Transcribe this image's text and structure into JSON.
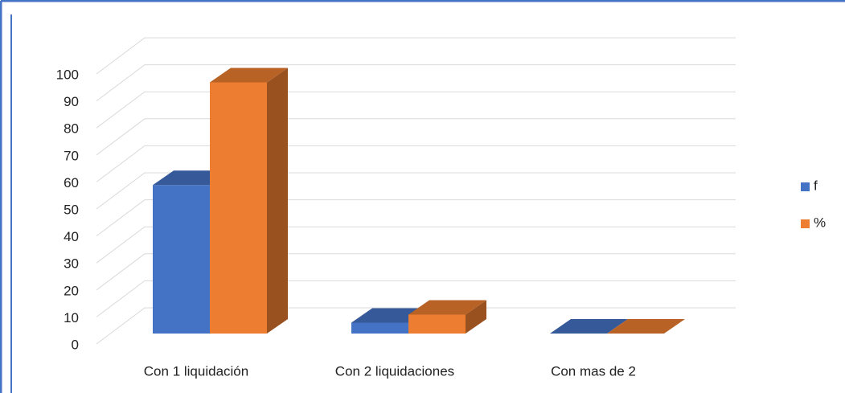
{
  "chart_data": {
    "type": "bar3d",
    "categories": [
      "Con 1 liquidación",
      "Con 2 liquidaciones",
      "Con mas de 2"
    ],
    "series": [
      {
        "name": "f",
        "color": "#4472c4",
        "values": [
          55,
          4,
          0
        ]
      },
      {
        "name": "%",
        "color": "#ed7d31",
        "values": [
          93,
          7,
          0
        ]
      }
    ],
    "ylim": [
      0,
      100
    ],
    "yticks": [
      0,
      10,
      20,
      30,
      40,
      50,
      60,
      70,
      80,
      90,
      100
    ],
    "grid": true,
    "legend": "right"
  }
}
